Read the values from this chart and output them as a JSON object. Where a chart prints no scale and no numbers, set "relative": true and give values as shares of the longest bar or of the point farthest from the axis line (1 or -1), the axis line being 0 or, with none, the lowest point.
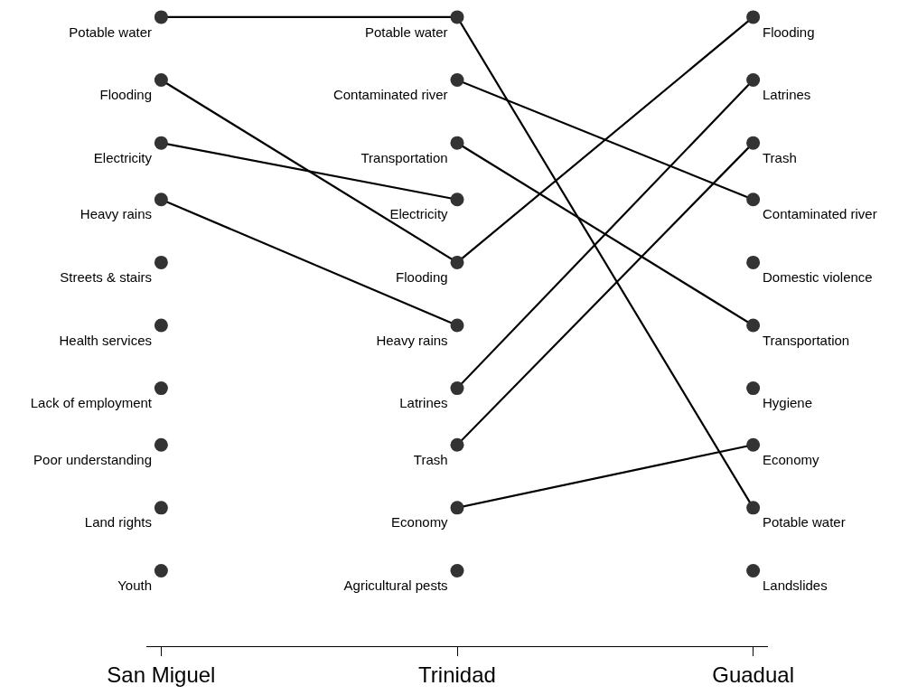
{
  "chart_data": {
    "type": "line",
    "relative": true,
    "categories": [
      "San Miguel",
      "Trinidad",
      "Guadual"
    ],
    "marker": "circle",
    "line_style": "solid",
    "legend": false,
    "series": [
      {
        "name": "Potable water",
        "color": "#333333",
        "values": [
          1,
          1,
          0.22
        ]
      },
      {
        "name": "Flooding",
        "color": "#333333",
        "values": [
          0.9,
          0.61,
          1
        ]
      },
      {
        "name": "Electricity",
        "color": "#333333",
        "values": [
          0.8,
          0.71,
          null
        ]
      },
      {
        "name": "Heavy rains",
        "color": "#333333",
        "values": [
          0.71,
          0.51,
          null
        ]
      },
      {
        "name": "Streets & stairs",
        "color": "#333333",
        "values": [
          0.61,
          null,
          null
        ]
      },
      {
        "name": "Health services",
        "color": "#333333",
        "values": [
          0.51,
          null,
          null
        ]
      },
      {
        "name": "Lack of employment",
        "color": "#333333",
        "values": [
          0.41,
          null,
          null
        ]
      },
      {
        "name": "Poor understanding",
        "color": "#333333",
        "values": [
          0.32,
          null,
          null
        ]
      },
      {
        "name": "Land rights",
        "color": "#333333",
        "values": [
          0.22,
          null,
          null
        ]
      },
      {
        "name": "Youth",
        "color": "#333333",
        "values": [
          0.12,
          null,
          null
        ]
      },
      {
        "name": "Contaminated river",
        "color": "#333333",
        "values": [
          null,
          0.9,
          0.71
        ]
      },
      {
        "name": "Transportation",
        "color": "#333333",
        "values": [
          null,
          0.8,
          0.51
        ]
      },
      {
        "name": "Latrines",
        "color": "#333333",
        "values": [
          null,
          0.41,
          0.9
        ]
      },
      {
        "name": "Trash",
        "color": "#333333",
        "values": [
          null,
          0.32,
          0.8
        ]
      },
      {
        "name": "Economy",
        "color": "#333333",
        "values": [
          null,
          0.22,
          0.32
        ]
      },
      {
        "name": "Agricultural pests",
        "color": "#333333",
        "values": [
          null,
          0.12,
          null
        ]
      },
      {
        "name": "Domestic violence",
        "color": "#333333",
        "values": [
          null,
          null,
          0.61
        ]
      },
      {
        "name": "Hygiene",
        "color": "#333333",
        "values": [
          null,
          null,
          0.41
        ]
      },
      {
        "name": "Landslides",
        "color": "#333333",
        "values": [
          null,
          null,
          0.12
        ]
      }
    ]
  }
}
